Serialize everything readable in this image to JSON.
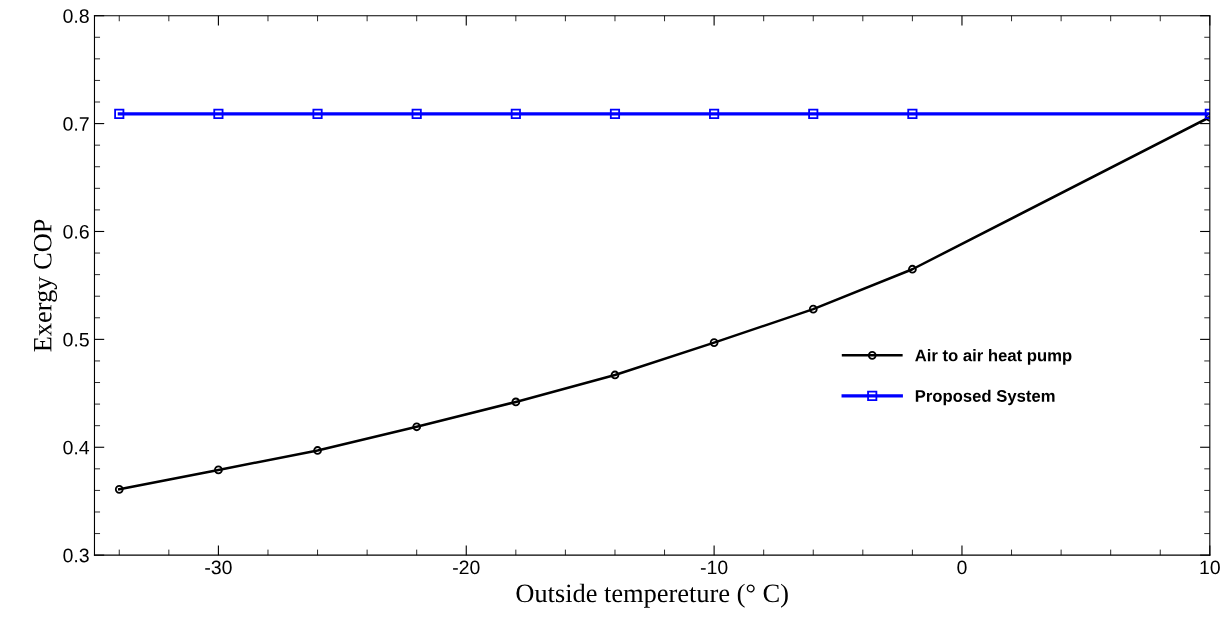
{
  "chart_data": {
    "type": "line",
    "xlabel": "Outside tempereture (° C)",
    "ylabel": "Exergy COP",
    "xlim": [
      -35,
      10
    ],
    "xticks": [
      -30,
      -20,
      -10,
      0,
      10
    ],
    "ylim": [
      0.3,
      0.8
    ],
    "yticks": [
      0.3,
      0.4,
      0.5,
      0.6,
      0.7,
      0.8
    ],
    "grid": false,
    "legend": "right",
    "line_style": "solid",
    "series": [
      {
        "name": "Air to air heat pump",
        "color": "#000000",
        "marker": "circle",
        "x": [
          -34,
          -30,
          -26,
          -22,
          -18,
          -14,
          -10,
          -6,
          -2,
          10
        ],
        "values": [
          0.361,
          0.379,
          0.397,
          0.419,
          0.442,
          0.467,
          0.497,
          0.528,
          0.565,
          0.706
        ]
      },
      {
        "name": "Proposed System",
        "color": "#0000ff",
        "marker": "square",
        "x": [
          -34,
          -30,
          -26,
          -22,
          -18,
          -14,
          -10,
          -6,
          -2,
          10
        ],
        "values": [
          0.709,
          0.709,
          0.709,
          0.709,
          0.709,
          0.709,
          0.709,
          0.709,
          0.709,
          0.709
        ]
      }
    ]
  }
}
